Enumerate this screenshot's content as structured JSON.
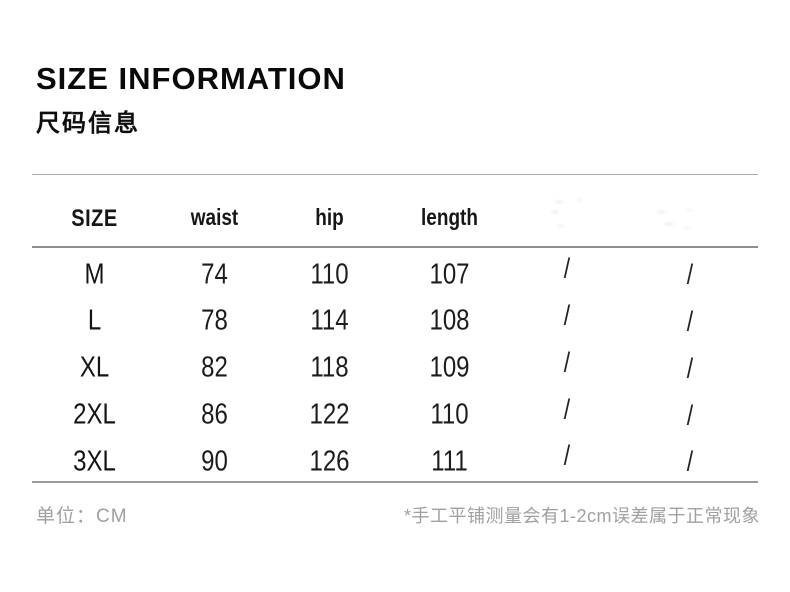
{
  "page": {
    "title": "SIZE INFORMATION",
    "subtitle": "尺码信息"
  },
  "table": {
    "columns": [
      "SIZE",
      "waist",
      "hip",
      "length",
      "",
      ""
    ],
    "rows": [
      [
        "M",
        "74",
        "110",
        "107",
        "/",
        "/"
      ],
      [
        "L",
        "78",
        "114",
        "108",
        "/",
        "/"
      ],
      [
        "XL",
        "82",
        "118",
        "109",
        "/",
        "/"
      ],
      [
        "2XL",
        "86",
        "122",
        "110",
        "/",
        "/"
      ],
      [
        "3XL",
        "90",
        "126",
        "111",
        "/",
        "/"
      ]
    ]
  },
  "footer": {
    "unit_label": "单位：CM",
    "note": "*手工平铺测量会有1-2cm误差属于正常现象"
  },
  "colors": {
    "text_primary": "#0a0a0a",
    "rule_line": "#9b9b9b",
    "muted_text": "#a0a0a0"
  }
}
